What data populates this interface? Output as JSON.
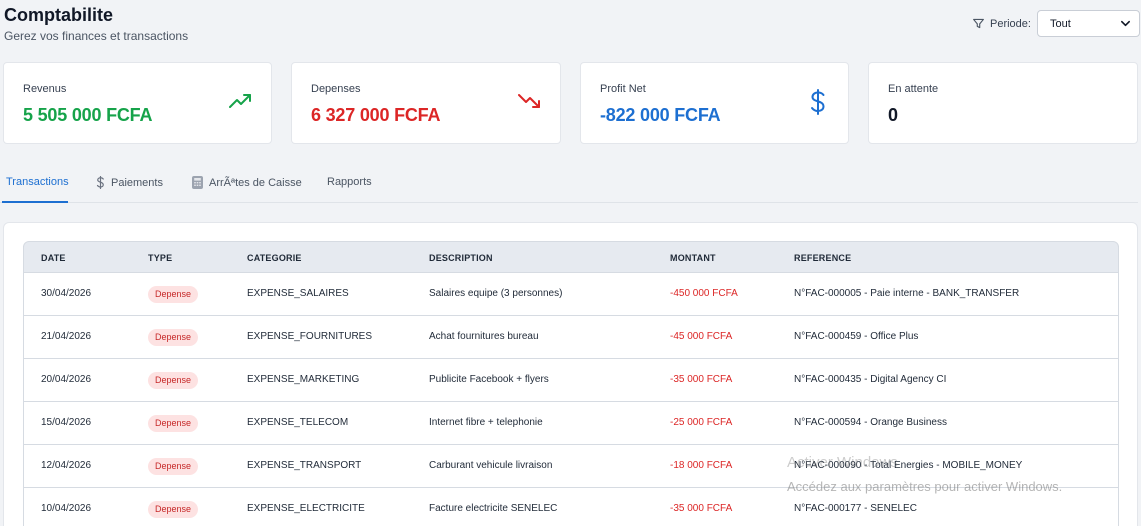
{
  "header": {
    "title": "Comptabilite",
    "subtitle": "Gerez vos finances et transactions",
    "period_label": "Periode:",
    "period_value": "Tout"
  },
  "stats": [
    {
      "label": "Revenus",
      "value": "5 505 000 FCFA",
      "color": "#16a34a",
      "icon": "trending-up-icon"
    },
    {
      "label": "Depenses",
      "value": "6 327 000 FCFA",
      "color": "#dc2626",
      "icon": "trending-down-icon"
    },
    {
      "label": "Profit Net",
      "value": "-822 000 FCFA",
      "color": "#1d6fd1",
      "icon": "dollar-icon"
    },
    {
      "label": "En attente",
      "value": "0",
      "color": "#111827",
      "icon": ""
    }
  ],
  "tabs": [
    {
      "label": "Transactions",
      "active": true,
      "icon": ""
    },
    {
      "label": "Paiements",
      "active": false,
      "icon": "dollar-icon"
    },
    {
      "label": "ArrÃªtes de Caisse",
      "active": false,
      "icon": "calculator-icon"
    },
    {
      "label": "Rapports",
      "active": false,
      "icon": ""
    }
  ],
  "table": {
    "columns": [
      "DATE",
      "TYPE",
      "CATEGORIE",
      "DESCRIPTION",
      "MONTANT",
      "REFERENCE"
    ],
    "rows": [
      {
        "date": "30/04/2026",
        "type": "Depense",
        "category": "EXPENSE_SALAIRES",
        "description": "Salaires equipe (3 personnes)",
        "amount": "-450 000 FCFA",
        "reference": "N°FAC-000005 - Paie interne - BANK_TRANSFER"
      },
      {
        "date": "21/04/2026",
        "type": "Depense",
        "category": "EXPENSE_FOURNITURES",
        "description": "Achat fournitures bureau",
        "amount": "-45 000 FCFA",
        "reference": "N°FAC-000459 - Office Plus"
      },
      {
        "date": "20/04/2026",
        "type": "Depense",
        "category": "EXPENSE_MARKETING",
        "description": "Publicite Facebook + flyers",
        "amount": "-35 000 FCFA",
        "reference": "N°FAC-000435 - Digital Agency CI"
      },
      {
        "date": "15/04/2026",
        "type": "Depense",
        "category": "EXPENSE_TELECOM",
        "description": "Internet fibre + telephonie",
        "amount": "-25 000 FCFA",
        "reference": "N°FAC-000594 - Orange Business"
      },
      {
        "date": "12/04/2026",
        "type": "Depense",
        "category": "EXPENSE_TRANSPORT",
        "description": "Carburant vehicule livraison",
        "amount": "-18 000 FCFA",
        "reference": "N°FAC-000090 - Total Energies - MOBILE_MONEY"
      },
      {
        "date": "10/04/2026",
        "type": "Depense",
        "category": "EXPENSE_ELECTRICITE",
        "description": "Facture electricite SENELEC",
        "amount": "-35 000 FCFA",
        "reference": "N°FAC-000177 - SENELEC"
      }
    ]
  },
  "watermark": {
    "line1": "Activer Windows",
    "line2": "Accédez aux paramètres pour activer Windows."
  }
}
